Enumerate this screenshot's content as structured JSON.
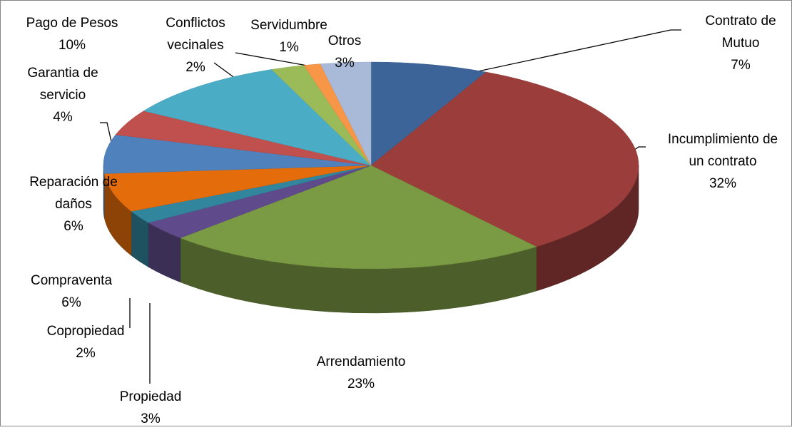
{
  "chart_data": {
    "type": "pie3d",
    "categories": [
      "Contrato de Mutuo",
      "Incumplimiento de un contrato",
      "Arrendamiento",
      "Propiedad",
      "Copropiedad",
      "Compraventa",
      "Reparación de daños",
      "Garantia de servicio",
      "Pago de Pesos",
      "Conflictos vecinales",
      "Servidumbre",
      "Otros"
    ],
    "values": [
      7,
      32,
      23,
      3,
      2,
      6,
      6,
      4,
      10,
      2,
      1,
      3
    ],
    "value_labels": [
      "7%",
      "32%",
      "23%",
      "3%",
      "2%",
      "6%",
      "6%",
      "4%",
      "10%",
      "2%",
      "1%",
      "3%"
    ],
    "colors": [
      "#3c6499",
      "#9b3d3b",
      "#7a9a43",
      "#5f4b8b",
      "#31859c",
      "#e46c0a",
      "#4f81bd",
      "#c0504d",
      "#4bacc6",
      "#9bbb59",
      "#f79646",
      "#a9b9d8"
    ]
  }
}
